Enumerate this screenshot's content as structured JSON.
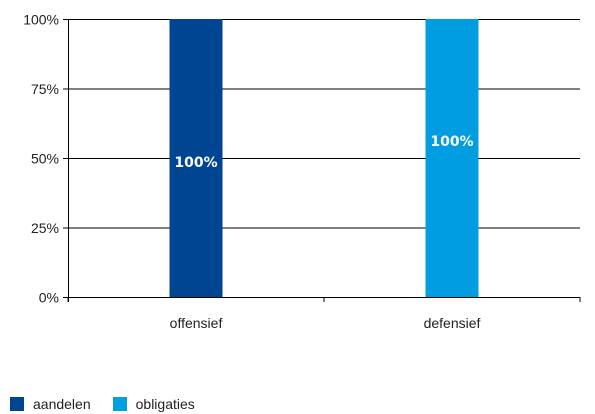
{
  "chart_data": {
    "type": "bar",
    "stacked": true,
    "categories": [
      "offensief",
      "defensief"
    ],
    "series": [
      {
        "name": "aandelen",
        "values": [
          100,
          0
        ],
        "color": "#004592"
      },
      {
        "name": "obligaties",
        "values": [
          0,
          100
        ],
        "color": "#009EE0"
      }
    ],
    "data_labels": [
      "100%",
      "100%"
    ],
    "ylim": [
      0,
      100
    ],
    "yticks": [
      {
        "value": 0,
        "label": "0%"
      },
      {
        "value": 25,
        "label": "25%"
      },
      {
        "value": 50,
        "label": "50%"
      },
      {
        "value": 75,
        "label": "75%"
      },
      {
        "value": 100,
        "label": "100%"
      }
    ],
    "grid": true,
    "legend_position": "bottom-left"
  },
  "legend": {
    "items": [
      {
        "label": "aandelen",
        "color": "#004592"
      },
      {
        "label": "obligaties",
        "color": "#009EE0"
      }
    ]
  }
}
